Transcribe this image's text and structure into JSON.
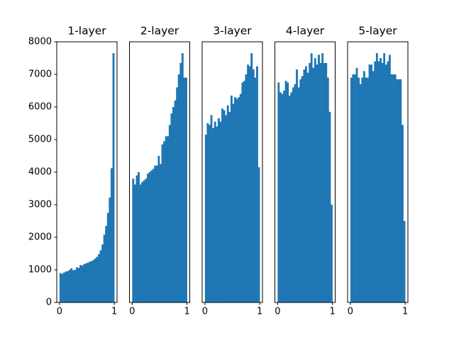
{
  "chart_data": [
    {
      "type": "histogram",
      "title": "1-layer",
      "color": "#1f77b4",
      "bins": [
        0,
        0.033,
        0.067,
        0.1,
        0.133,
        0.167,
        0.2,
        0.233,
        0.267,
        0.3,
        0.333,
        0.367,
        0.4,
        0.433,
        0.467,
        0.5,
        0.533,
        0.567,
        0.6,
        0.633,
        0.667,
        0.7,
        0.733,
        0.767,
        0.8,
        0.833,
        0.867,
        0.9,
        0.933,
        0.967,
        1
      ],
      "values": [
        900,
        880,
        920,
        950,
        960,
        1000,
        1050,
        990,
        1000,
        1080,
        1060,
        1150,
        1130,
        1180,
        1200,
        1220,
        1250,
        1270,
        1300,
        1350,
        1400,
        1480,
        1600,
        1780,
        2080,
        2350,
        2750,
        3220,
        4120,
        7650
      ],
      "xlim": [
        -0.05,
        1.05
      ],
      "xticks": [
        0,
        1
      ],
      "ylim": [
        0,
        8000
      ],
      "yticks": [
        0,
        1000,
        2000,
        3000,
        4000,
        5000,
        6000,
        7000,
        8000
      ]
    },
    {
      "type": "histogram",
      "title": "2-layer",
      "color": "#1f77b4",
      "bins": [
        0,
        0.033,
        0.067,
        0.1,
        0.133,
        0.167,
        0.2,
        0.233,
        0.267,
        0.3,
        0.333,
        0.367,
        0.4,
        0.433,
        0.467,
        0.5,
        0.533,
        0.567,
        0.6,
        0.633,
        0.667,
        0.7,
        0.733,
        0.767,
        0.8,
        0.833,
        0.867,
        0.9,
        0.933,
        0.967,
        1
      ],
      "values": [
        3800,
        3620,
        3900,
        4000,
        3620,
        3700,
        3750,
        3800,
        3950,
        4000,
        4050,
        4100,
        4200,
        4200,
        4500,
        4250,
        4850,
        4950,
        5100,
        5100,
        5450,
        5800,
        6000,
        6200,
        6600,
        7000,
        7350,
        7650,
        6900,
        6900
      ],
      "xlim": [
        -0.05,
        1.05
      ],
      "xticks": [
        0,
        1
      ],
      "ylim": [
        0,
        8000
      ]
    },
    {
      "type": "histogram",
      "title": "3-layer",
      "color": "#1f77b4",
      "bins": [
        0,
        0.033,
        0.067,
        0.1,
        0.133,
        0.167,
        0.2,
        0.233,
        0.267,
        0.3,
        0.333,
        0.367,
        0.4,
        0.433,
        0.467,
        0.5,
        0.533,
        0.567,
        0.6,
        0.633,
        0.667,
        0.7,
        0.733,
        0.767,
        0.8,
        0.833,
        0.867,
        0.9,
        0.933,
        0.967,
        1
      ],
      "values": [
        5150,
        5500,
        5450,
        5750,
        5350,
        5550,
        5400,
        5650,
        5550,
        5950,
        5900,
        5750,
        6050,
        5850,
        6350,
        6100,
        6300,
        6250,
        6300,
        6400,
        6750,
        6800,
        7000,
        7300,
        7250,
        7650,
        7150,
        6900,
        7250,
        4150
      ],
      "xlim": [
        -0.05,
        1.05
      ],
      "xticks": [
        0,
        1
      ],
      "ylim": [
        0,
        8000
      ]
    },
    {
      "type": "histogram",
      "title": "4-layer",
      "color": "#1f77b4",
      "bins": [
        0,
        0.033,
        0.067,
        0.1,
        0.133,
        0.167,
        0.2,
        0.233,
        0.267,
        0.3,
        0.333,
        0.367,
        0.4,
        0.433,
        0.467,
        0.5,
        0.533,
        0.567,
        0.6,
        0.633,
        0.667,
        0.7,
        0.733,
        0.767,
        0.8,
        0.833,
        0.867,
        0.9,
        0.933,
        0.967,
        1
      ],
      "values": [
        6750,
        6450,
        6400,
        6500,
        6800,
        6750,
        6350,
        6450,
        6600,
        6700,
        7150,
        6600,
        6850,
        6950,
        7150,
        7250,
        7050,
        7350,
        7650,
        7200,
        7500,
        7300,
        7600,
        7350,
        7650,
        7350,
        7350,
        6900,
        5850,
        3000
      ],
      "xlim": [
        -0.05,
        1.05
      ],
      "xticks": [
        0,
        1
      ],
      "ylim": [
        0,
        8000
      ]
    },
    {
      "type": "histogram",
      "title": "5-layer",
      "color": "#1f77b4",
      "bins": [
        0,
        0.033,
        0.067,
        0.1,
        0.133,
        0.167,
        0.2,
        0.233,
        0.267,
        0.3,
        0.333,
        0.367,
        0.4,
        0.433,
        0.467,
        0.5,
        0.533,
        0.567,
        0.6,
        0.633,
        0.667,
        0.7,
        0.733,
        0.767,
        0.8,
        0.833,
        0.867,
        0.9,
        0.933,
        0.967,
        1
      ],
      "values": [
        6900,
        7000,
        7000,
        7200,
        6900,
        6700,
        6900,
        7100,
        6900,
        6900,
        7300,
        7300,
        7100,
        7400,
        7650,
        7400,
        7500,
        7350,
        7650,
        7300,
        7400,
        7600,
        7000,
        7000,
        7000,
        6850,
        6850,
        6850,
        5450,
        2500
      ],
      "xlim": [
        -0.05,
        1.05
      ],
      "xticks": [
        0,
        1
      ],
      "ylim": [
        0,
        8000
      ]
    }
  ]
}
